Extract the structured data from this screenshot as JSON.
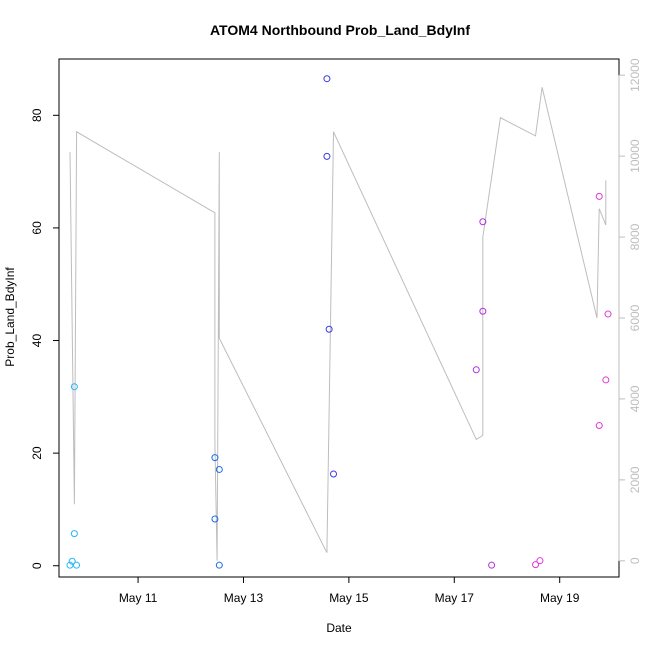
{
  "chart_data": {
    "type": "scatter",
    "title": "ATOM4 Northbound Prob_Land_BdyInf",
    "xlabel": "Date",
    "ylabel": "Prob_Land_BdyInf",
    "x_axis": {
      "type": "date",
      "range": [
        "2023-05-09T12:00",
        "2023-05-20T03:00"
      ],
      "ticks": [
        {
          "value": "2023-05-11",
          "label": "May 11"
        },
        {
          "value": "2023-05-13",
          "label": "May 13"
        },
        {
          "value": "2023-05-15",
          "label": "May 15"
        },
        {
          "value": "2023-05-17",
          "label": "May 17"
        },
        {
          "value": "2023-05-19",
          "label": "May 19"
        }
      ]
    },
    "y_axis_left": {
      "range": [
        -2,
        90
      ],
      "ticks": [
        0,
        20,
        40,
        60,
        80
      ]
    },
    "y_axis_right": {
      "range": [
        -400,
        12400
      ],
      "ticks": [
        0,
        2000,
        4000,
        6000,
        8000,
        10000,
        12000
      ],
      "color": "#bdbdbd"
    },
    "grid": false,
    "series": [
      {
        "kind": "points",
        "color": "#29b6f6",
        "points": [
          {
            "x": "2023-05-09T19:00",
            "y": 31.8
          },
          {
            "x": "2023-05-09T18:00",
            "y": 0.8
          },
          {
            "x": "2023-05-09T19:00",
            "y": 5.7
          },
          {
            "x": "2023-05-09T17:00",
            "y": 0.1
          },
          {
            "x": "2023-05-09T20:00",
            "y": 0.1
          }
        ]
      },
      {
        "kind": "points",
        "color": "#1e6ce6",
        "points": [
          {
            "x": "2023-05-12T11:00",
            "y": 19.2
          },
          {
            "x": "2023-05-12T11:00",
            "y": 8.3
          },
          {
            "x": "2023-05-12T13:00",
            "y": 17.1
          },
          {
            "x": "2023-05-12T13:00",
            "y": 0.1
          }
        ]
      },
      {
        "kind": "points",
        "color": "#3a3ae8",
        "points": [
          {
            "x": "2023-05-14T14:00",
            "y": 86.5
          },
          {
            "x": "2023-05-14T14:00",
            "y": 72.7
          },
          {
            "x": "2023-05-14T15:00",
            "y": 42.0
          },
          {
            "x": "2023-05-14T17:00",
            "y": 16.3
          }
        ]
      },
      {
        "kind": "points",
        "color": "#b42fe0",
        "points": [
          {
            "x": "2023-05-17T13:00",
            "y": 61.1
          },
          {
            "x": "2023-05-17T13:00",
            "y": 45.2
          },
          {
            "x": "2023-05-17T10:00",
            "y": 34.8
          },
          {
            "x": "2023-05-17T17:00",
            "y": 0.1
          }
        ]
      },
      {
        "kind": "points",
        "color": "#e03ad8",
        "points": [
          {
            "x": "2023-05-18T13:00",
            "y": 0.2
          },
          {
            "x": "2023-05-18T15:00",
            "y": 0.9
          },
          {
            "x": "2023-05-19T18:00",
            "y": 65.6
          },
          {
            "x": "2023-05-19T22:00",
            "y": 44.7
          },
          {
            "x": "2023-05-19T21:00",
            "y": 33.0
          },
          {
            "x": "2023-05-19T18:00",
            "y": 24.9
          }
        ]
      },
      {
        "kind": "line",
        "axis": "right",
        "color": "#bdbdbd",
        "points": [
          {
            "x": "2023-05-09T17:00",
            "y": 10100
          },
          {
            "x": "2023-05-09T19:00",
            "y": 1400
          },
          {
            "x": "2023-05-09T20:00",
            "y": 10600
          },
          {
            "x": "2023-05-12T11:00",
            "y": 8600
          },
          {
            "x": "2023-05-12T11:00",
            "y": 2900
          },
          {
            "x": "2023-05-12T12:00",
            "y": 0
          },
          {
            "x": "2023-05-12T13:00",
            "y": 10100
          },
          {
            "x": "2023-05-12T13:00",
            "y": 5500
          },
          {
            "x": "2023-05-14T14:00",
            "y": 200
          },
          {
            "x": "2023-05-14T17:00",
            "y": 10600
          },
          {
            "x": "2023-05-17T10:00",
            "y": 3000
          },
          {
            "x": "2023-05-17T13:00",
            "y": 3100
          },
          {
            "x": "2023-05-17T13:00",
            "y": 8000
          },
          {
            "x": "2023-05-17T21:00",
            "y": 10950
          },
          {
            "x": "2023-05-18T13:00",
            "y": 10500
          },
          {
            "x": "2023-05-18T16:00",
            "y": 11700
          },
          {
            "x": "2023-05-19T17:00",
            "y": 6000
          },
          {
            "x": "2023-05-19T18:00",
            "y": 8700
          },
          {
            "x": "2023-05-19T21:00",
            "y": 8300
          },
          {
            "x": "2023-05-19T21:00",
            "y": 9400
          }
        ]
      }
    ]
  }
}
